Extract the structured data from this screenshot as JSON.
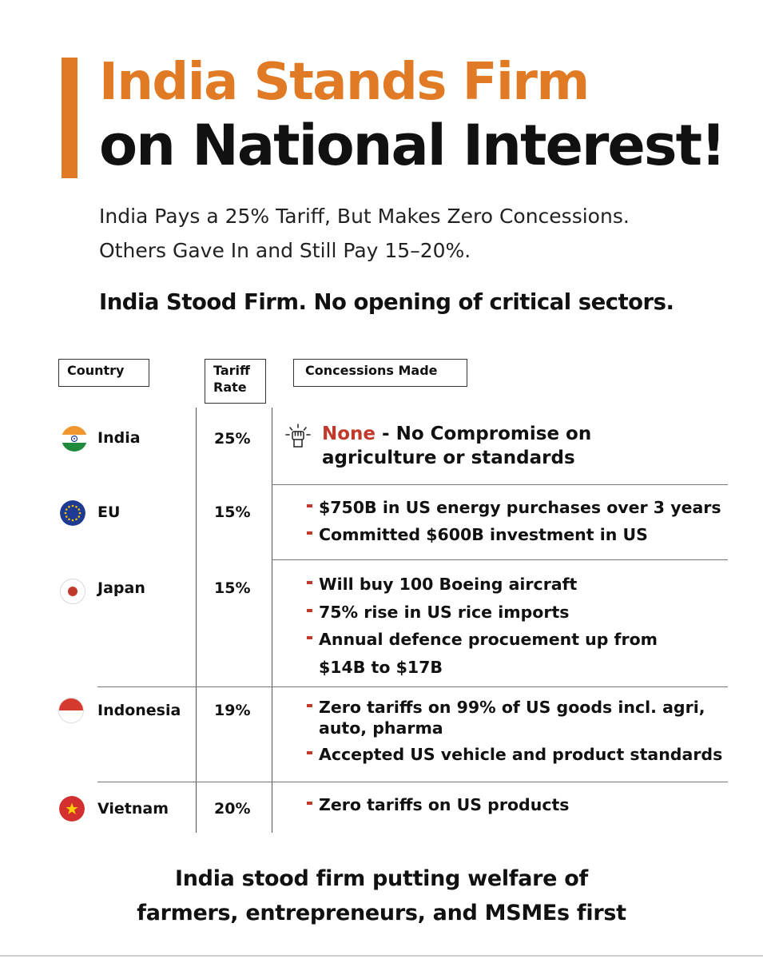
{
  "header": {
    "title_line_1": "India Stands Firm",
    "title_line_2": "on National Interest!",
    "subtitle_line_1": "India Pays a 25% Tariff, But Makes Zero Concessions.",
    "subtitle_line_2": "Others Gave In and Still Pay 15–20%.",
    "emphasis": "India Stood Firm. No opening of critical sectors."
  },
  "table": {
    "headers": {
      "country": "Country",
      "tariff_line_1": "Tariff",
      "tariff_line_2": "Rate",
      "concessions": "Concessions Made"
    },
    "rows": [
      {
        "country": "India",
        "rate": "25%",
        "none_word": "None",
        "none_rest": " - No Compromise on",
        "none_line_2": "agriculture or standards"
      },
      {
        "country": "EU",
        "rate": "15%",
        "items": [
          "$750B in US energy purchases over 3 years",
          "Committed $600B investment in US"
        ]
      },
      {
        "country": "Japan",
        "rate": "15%",
        "items": [
          "Will buy 100 Boeing aircraft",
          "75% rise in US rice imports",
          "Annual defence procuement up from"
        ],
        "item_3_line_2": "$14B to $17B"
      },
      {
        "country": "Indonesia",
        "rate": "19%",
        "items": [
          "Zero tariffs on 99% of US goods incl. agri,",
          "Accepted US vehicle and product standards"
        ],
        "item_1_line_2": "auto, pharma"
      },
      {
        "country": "Vietnam",
        "rate": "20%",
        "items": [
          "Zero tariffs on US products"
        ]
      }
    ]
  },
  "footer": {
    "line_1": "India stood firm putting welfare of",
    "line_2": "farmers, entrepreneurs, and MSMEs first"
  },
  "icons": {
    "india": "india-flag-icon",
    "eu": "eu-flag-icon",
    "japan": "japan-flag-icon",
    "indonesia": "indonesia-flag-icon",
    "vietnam": "vietnam-flag-icon",
    "fist": "raised-fist-icon"
  },
  "colors": {
    "accent": "#e07a24",
    "highlight": "#c0392b",
    "text": "#111111"
  }
}
